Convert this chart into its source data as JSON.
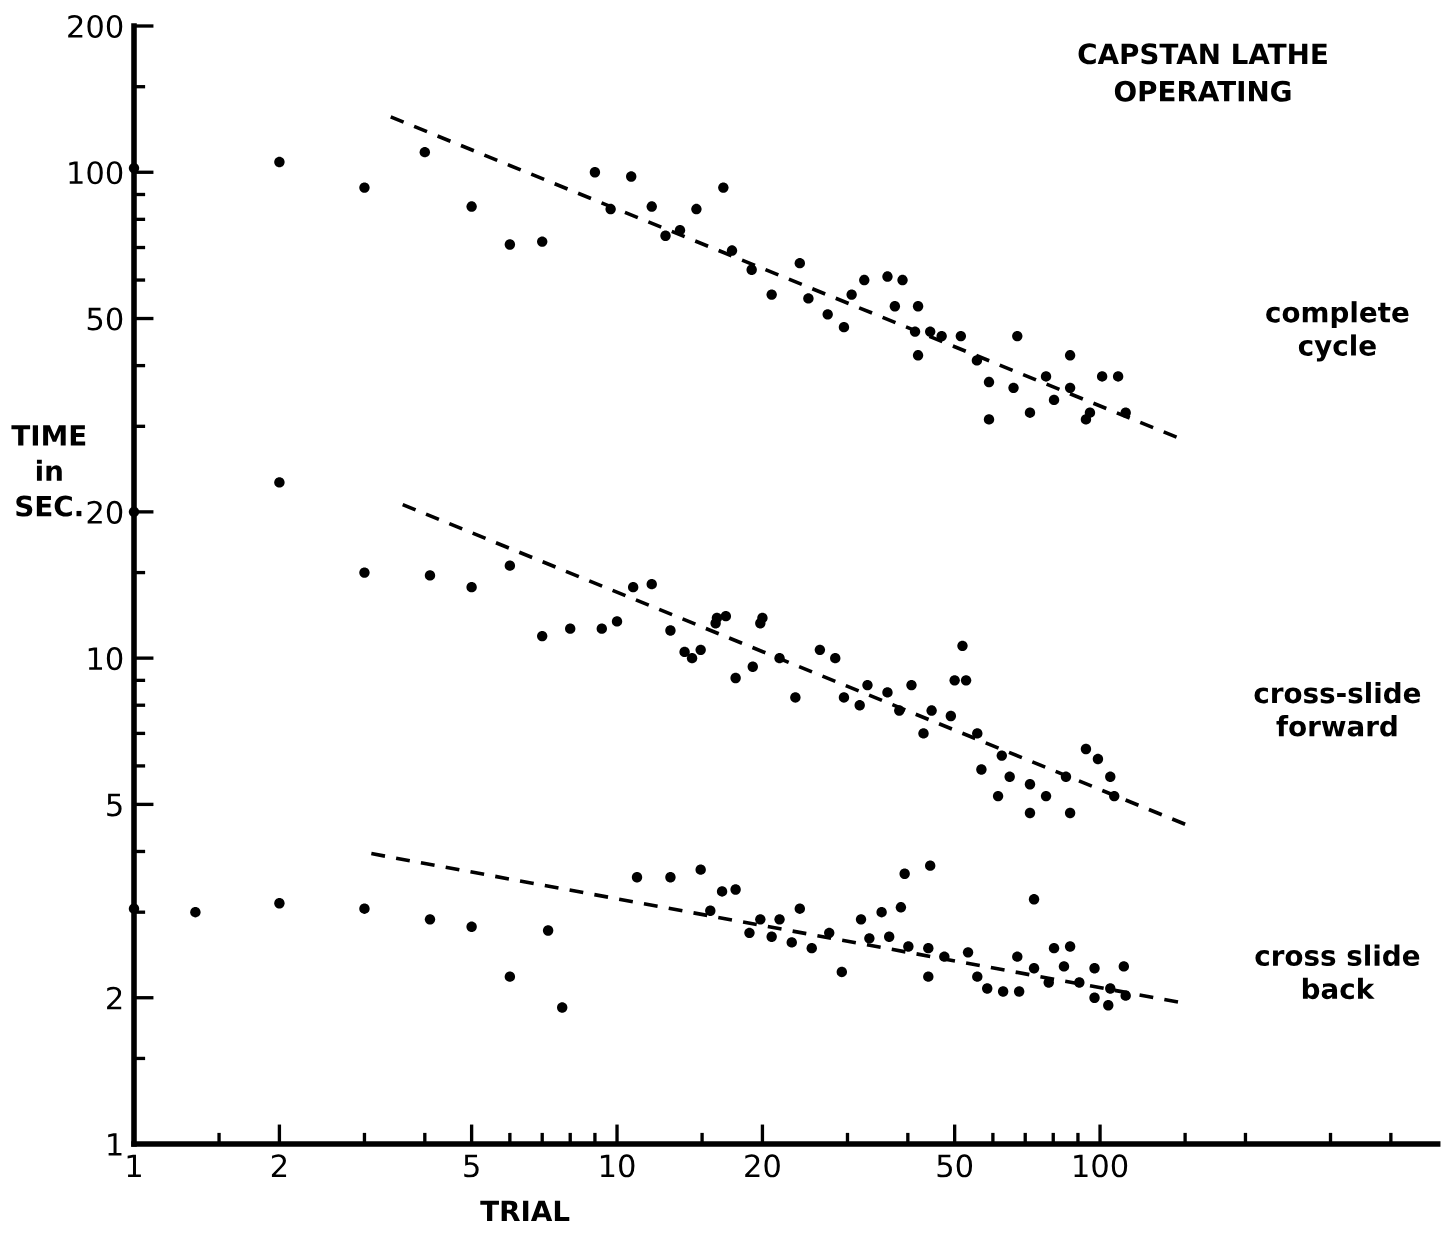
{
  "chart_data": {
    "type": "scatter",
    "title": "CAPSTAN LATHE\nOPERATING",
    "xlabel": "TRIAL",
    "ylabel": "TIME\nin\nSEC.",
    "log": "xy",
    "marker": "circle",
    "grid": false,
    "legend": false,
    "xlim": [
      1,
      500
    ],
    "ylim": [
      1,
      200
    ],
    "xticks": [
      1,
      {
        "value": 1.5,
        "label": null
      },
      2,
      {
        "value": 3,
        "label": null
      },
      {
        "value": 4,
        "label": null
      },
      5,
      {
        "value": 6,
        "label": null
      },
      {
        "value": 7,
        "label": null
      },
      {
        "value": 8,
        "label": null
      },
      {
        "value": 9,
        "label": null
      },
      10,
      {
        "value": 15,
        "label": null
      },
      20,
      {
        "value": 30,
        "label": null
      },
      {
        "value": 40,
        "label": null
      },
      50,
      {
        "value": 60,
        "label": null
      },
      {
        "value": 70,
        "label": null
      },
      {
        "value": 80,
        "label": null
      },
      {
        "value": 90,
        "label": null
      },
      100,
      {
        "value": 150,
        "label": null
      },
      {
        "value": 200,
        "label": null
      },
      {
        "value": 300,
        "label": null
      },
      {
        "value": 400,
        "label": null
      }
    ],
    "yticks": [
      1,
      {
        "value": 1.5,
        "label": null
      },
      2,
      {
        "value": 3,
        "label": null
      },
      {
        "value": 4,
        "label": null
      },
      5,
      {
        "value": 6,
        "label": null
      },
      {
        "value": 7,
        "label": null
      },
      {
        "value": 8,
        "label": null
      },
      {
        "value": 9,
        "label": null
      },
      10,
      {
        "value": 15,
        "label": null
      },
      20,
      {
        "value": 30,
        "label": null
      },
      {
        "value": 40,
        "label": null
      },
      50,
      {
        "value": 60,
        "label": null
      },
      {
        "value": 70,
        "label": null
      },
      {
        "value": 80,
        "label": null
      },
      {
        "value": 90,
        "label": null
      },
      100,
      {
        "value": 150,
        "label": null
      },
      200
    ],
    "series": [
      {
        "name": "complete cycle",
        "color": "#000000",
        "x": [
          1,
          2,
          3,
          4,
          5,
          6,
          7,
          9,
          10.7,
          9.7,
          11.8,
          12.6,
          13.5,
          14.6,
          16.6,
          17.3,
          19,
          20.9,
          23.9,
          24.9,
          27.3,
          29.5,
          30.6,
          32.5,
          36.3,
          39,
          37.6,
          42,
          41.4,
          44.5,
          42,
          47,
          51.5,
          55.6,
          58.9,
          58.9,
          67.4,
          66.2,
          71.6,
          77.3,
          86.7,
          86.7,
          95.3,
          101,
          109,
          113,
          93.5,
          80.3
        ],
        "values": [
          102,
          105,
          93,
          110,
          85,
          71,
          72,
          100,
          98,
          84,
          85,
          74,
          76,
          84,
          93,
          69,
          63,
          56,
          65,
          55,
          51,
          48,
          56,
          60,
          61,
          60,
          53,
          53,
          47,
          47,
          42,
          46,
          46,
          41,
          37,
          31,
          46,
          36,
          32,
          38,
          42,
          36,
          32,
          38,
          38,
          32,
          31,
          34
        ]
      },
      {
        "type": "line",
        "line_style": "dashed",
        "color": "#000000",
        "marker": "none",
        "x": [
          3.4,
          144
        ],
        "values": [
          130,
          28.5
        ]
      },
      {
        "name": "cross-slide forward",
        "color": "#000000",
        "x": [
          1,
          2,
          3,
          4.1,
          5,
          6,
          7,
          8,
          9.3,
          10,
          10.8,
          11.8,
          12.9,
          13.8,
          14.9,
          16.1,
          16.8,
          20,
          14.3,
          16,
          19.8,
          17.6,
          19.1,
          21.7,
          23.4,
          26.3,
          28.3,
          29.5,
          31.8,
          33,
          36.3,
          38.4,
          40.7,
          43.1,
          44.8,
          49.1,
          50,
          51.9,
          52.8,
          55.7,
          56.8,
          62.6,
          65,
          61.5,
          71.6,
          77.3,
          86.7,
          85,
          93.5,
          99,
          105,
          107,
          71.6
        ],
        "values": [
          20,
          23,
          15,
          14.8,
          14,
          15.5,
          11.1,
          11.5,
          11.5,
          11.9,
          14,
          14.2,
          11.4,
          10.3,
          10.4,
          12.1,
          12.2,
          12.1,
          10,
          11.8,
          11.8,
          9.1,
          9.6,
          10,
          8.3,
          10.4,
          10,
          8.3,
          8,
          8.8,
          8.5,
          7.8,
          8.8,
          7,
          7.8,
          7.6,
          9,
          10.6,
          9,
          7,
          5.9,
          6.3,
          5.7,
          5.2,
          5.5,
          5.2,
          4.8,
          5.7,
          6.5,
          6.2,
          5.7,
          5.2,
          4.8
        ]
      },
      {
        "type": "line",
        "line_style": "dashed",
        "color": "#000000",
        "marker": "none",
        "x": [
          3.6,
          150
        ],
        "values": [
          20.7,
          4.55
        ]
      },
      {
        "name": "cross slide back",
        "color": "#000000",
        "x": [
          1,
          1.34,
          2,
          3,
          4.1,
          5,
          6,
          7.2,
          7.7,
          11,
          12.9,
          14.9,
          15.6,
          16.5,
          17.6,
          19.8,
          21.7,
          23.9,
          18.8,
          20.9,
          23,
          25.3,
          27.5,
          29.2,
          32,
          33.3,
          35.3,
          38.7,
          39.4,
          44.5,
          36.6,
          40.1,
          44.1,
          44.1,
          47.6,
          53.3,
          55.7,
          58.4,
          63,
          68,
          73,
          67.4,
          73,
          78.3,
          80.3,
          86.7,
          84.2,
          90.6,
          97.4,
          105,
          112,
          113,
          104,
          97.4
        ],
        "values": [
          3.05,
          3,
          3.13,
          3.05,
          2.9,
          2.8,
          2.21,
          2.75,
          1.91,
          3.54,
          3.54,
          3.67,
          3.02,
          3.31,
          3.34,
          2.9,
          2.9,
          3.05,
          2.72,
          2.67,
          2.6,
          2.53,
          2.72,
          2.26,
          2.9,
          2.65,
          3,
          3.07,
          3.6,
          3.74,
          2.67,
          2.55,
          2.53,
          2.21,
          2.43,
          2.48,
          2.21,
          2.09,
          2.06,
          2.06,
          3.19,
          2.43,
          2.3,
          2.15,
          2.53,
          2.55,
          2.32,
          2.15,
          2,
          2.09,
          2.32,
          2.02,
          1.93,
          2.3
        ]
      },
      {
        "type": "line",
        "line_style": "dashed",
        "color": "#000000",
        "marker": "none",
        "x": [
          3.1,
          145
        ],
        "values": [
          3.96,
          1.96
        ]
      }
    ]
  }
}
